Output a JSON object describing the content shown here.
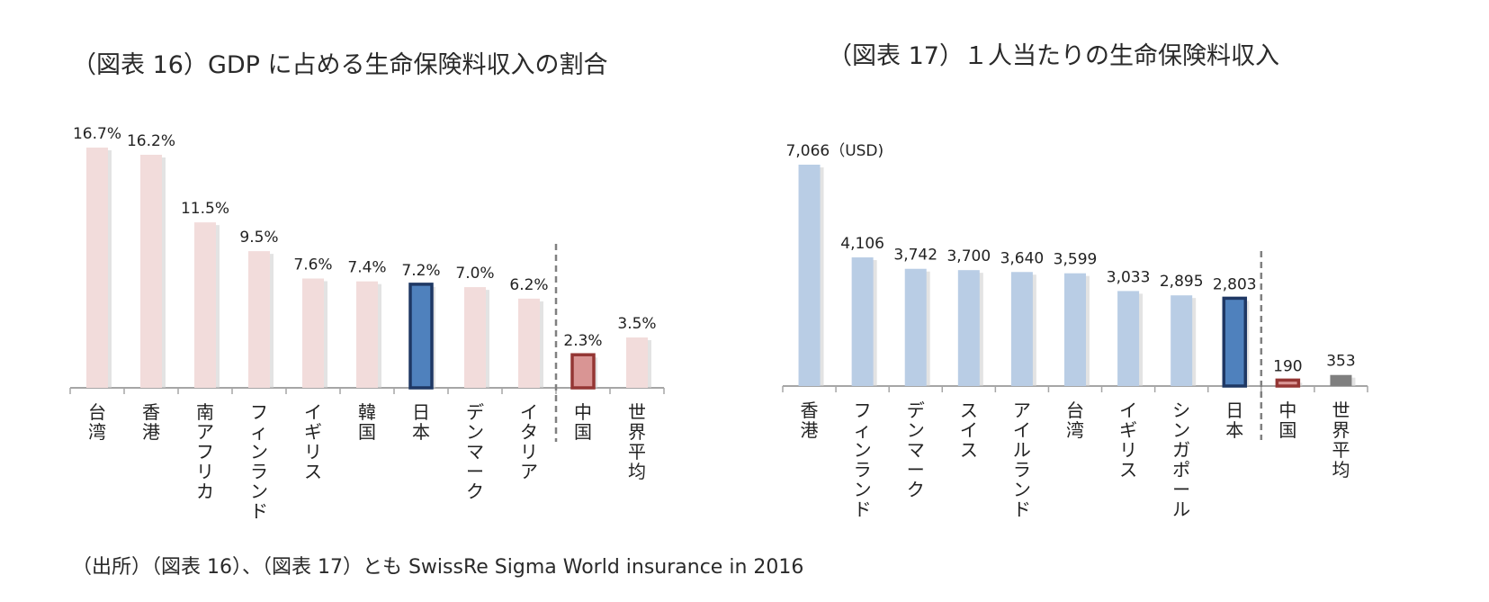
{
  "chart_data": [
    {
      "type": "bar",
      "title": "（図表 16）GDP に占める生命保険料収入の割合",
      "categories": [
        "台湾",
        "香港",
        "南アフリカ",
        "フィンランド",
        "イギリス",
        "韓国",
        "日本",
        "デンマーク",
        "イタリア",
        "中国",
        "世界平均"
      ],
      "values": [
        16.7,
        16.2,
        11.5,
        9.5,
        7.6,
        7.4,
        7.2,
        7.0,
        6.2,
        2.3,
        3.5
      ],
      "data_labels": [
        "16.7%",
        "16.2%",
        "11.5%",
        "9.5%",
        "7.6%",
        "7.4%",
        "7.2%",
        "7.0%",
        "6.2%",
        "2.3%",
        "3.5%"
      ],
      "unit": "%",
      "ylim": [
        0,
        16.7
      ],
      "grid": false,
      "divider_after_index": 8,
      "colors": {
        "default": "#f2dcdb",
        "highlight_japan": "#4f81bd",
        "highlight_japan_border": "#1f3864",
        "china": "#d99594",
        "china_border": "#943634"
      },
      "highlight": {
        "日本": "highlight_japan",
        "中国": "china"
      }
    },
    {
      "type": "bar",
      "title": "（図表 17）１人当たりの生命保険料収入",
      "categories": [
        "香港",
        "フィンランド",
        "デンマーク",
        "スイス",
        "アイルランド",
        "台湾",
        "イギリス",
        "シンガポール",
        "日本",
        "中国",
        "世界平均"
      ],
      "values": [
        7066,
        4106,
        3742,
        3700,
        3640,
        3599,
        3033,
        2895,
        2803,
        190,
        353
      ],
      "data_labels": [
        "7,066（USD)",
        "4,106",
        "3,742",
        "3,700",
        "3,640",
        "3,599",
        "3,033",
        "2,895",
        "2,803",
        "190",
        "353"
      ],
      "unit": "USD",
      "ylim": [
        0,
        7066
      ],
      "grid": false,
      "divider_after_index": 8,
      "colors": {
        "default": "#b9cde5",
        "highlight_japan": "#4f81bd",
        "highlight_japan_border": "#1f3864",
        "china": "#d99594",
        "china_border": "#943634",
        "world": "#7f7f7f"
      },
      "highlight": {
        "日本": "highlight_japan",
        "中国": "china",
        "世界平均": "world"
      }
    }
  ],
  "source": "（出所）（図表 16）、（図表 17）とも SwissRe Sigma World insurance in 2016"
}
